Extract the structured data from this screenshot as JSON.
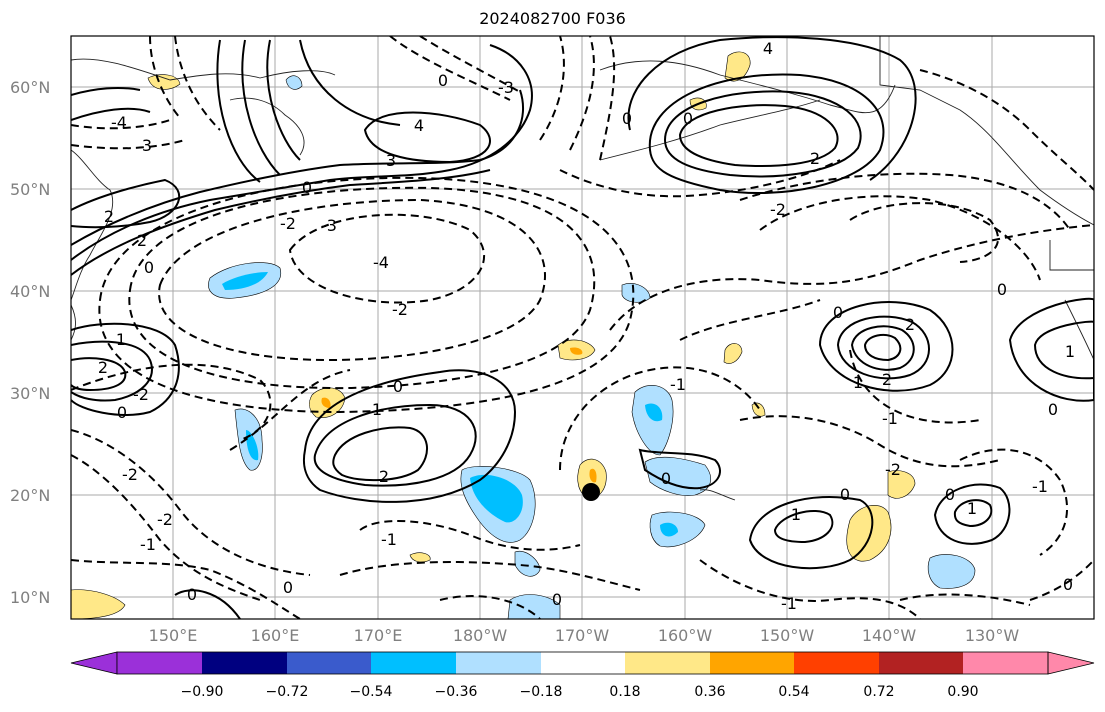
{
  "title": "2024082700 F036",
  "map": {
    "lat_labels": [
      "60°N",
      "50°N",
      "40°N",
      "30°N",
      "20°N",
      "10°N"
    ],
    "lon_labels": [
      "150°E",
      "160°E",
      "170°E",
      "180°W",
      "170°W",
      "160°W",
      "150°W",
      "140°W",
      "130°W"
    ],
    "contour_labels": [
      "4",
      "3",
      "2",
      "1",
      "0",
      "-1",
      "-2",
      "-3",
      "-4"
    ],
    "marker": {
      "name": "black-dot",
      "lat": 20.5,
      "lon": -169
    }
  },
  "colorbar": {
    "ticks": [
      "−0.90",
      "−0.72",
      "−0.54",
      "−0.36",
      "−0.18",
      "0.18",
      "0.36",
      "0.54",
      "0.72",
      "0.90"
    ],
    "colors": [
      "#9b30d9",
      "#000080",
      "#3a5bcc",
      "#00bfff",
      "#b0e0ff",
      "#ffffff",
      "#ffe888",
      "#ffa500",
      "#ff4000",
      "#b22222",
      "#ff88aa"
    ]
  }
}
